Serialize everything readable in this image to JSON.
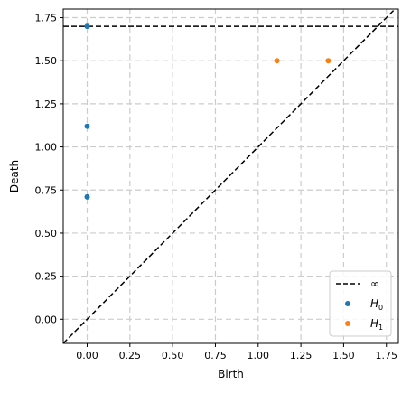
{
  "chart_data": {
    "type": "scatter",
    "title": "",
    "xlabel": "Birth",
    "ylabel": "Death",
    "xlim": [
      -0.14,
      1.82
    ],
    "ylim": [
      -0.14,
      1.8
    ],
    "xticks": [
      "0.00",
      "0.25",
      "0.50",
      "0.75",
      "1.00",
      "1.25",
      "1.50",
      "1.75"
    ],
    "yticks": [
      "0.00",
      "0.25",
      "0.50",
      "0.75",
      "1.00",
      "1.25",
      "1.50",
      "1.75"
    ],
    "grid": true,
    "legend_position": "lower-right",
    "infinity_level": 1.7,
    "series": [
      {
        "name": "H",
        "subscript": "0",
        "color": "#1f77b4",
        "points": [
          [
            0.0,
            1.7
          ],
          [
            0.0,
            1.12
          ],
          [
            0.0,
            0.71
          ]
        ]
      },
      {
        "name": "H",
        "subscript": "1",
        "color": "#ff7f0e",
        "points": [
          [
            1.11,
            1.5
          ],
          [
            1.41,
            1.5
          ]
        ]
      }
    ],
    "lines": [
      {
        "name": "∞",
        "style": "dashed",
        "color": "#000000"
      }
    ]
  }
}
